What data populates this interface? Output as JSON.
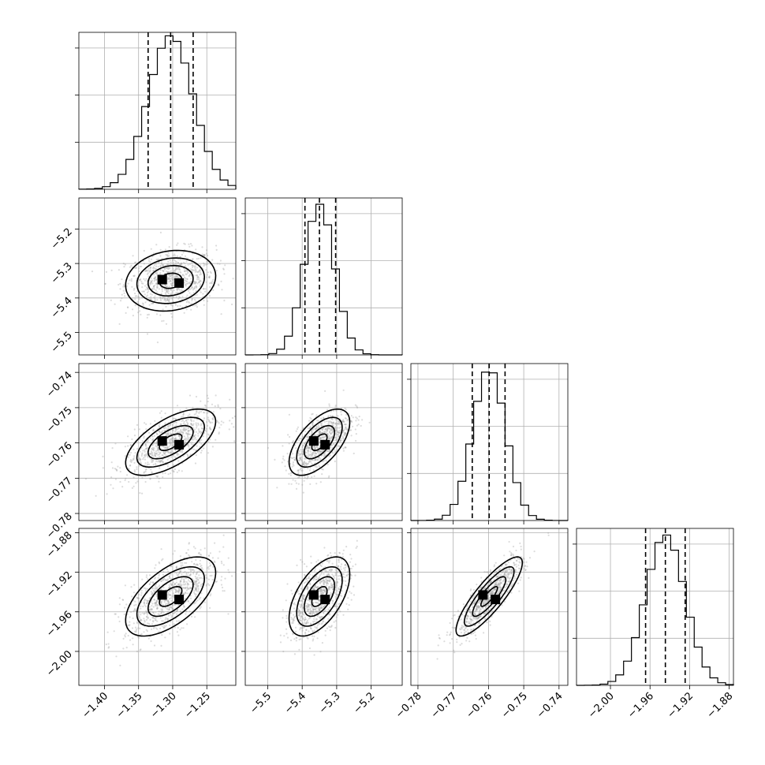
{
  "chart_data": {
    "type": "corner",
    "title": "",
    "n_params": 4,
    "grid": true,
    "params": [
      {
        "index": 0,
        "range": [
          -1.4375,
          -1.2075
        ],
        "median": -1.303,
        "q16": -1.336,
        "q84": -1.27,
        "sigma": 0.033,
        "hist_peak": 0.98,
        "x_ticks": [
          -1.4,
          -1.35,
          -1.3,
          -1.25
        ],
        "x_tick_labels": [
          "−1.40",
          "−1.35",
          "−1.30",
          "−1.25"
        ],
        "y_ticks": [],
        "y_tick_labels": []
      },
      {
        "index": 1,
        "range": [
          -5.565,
          -5.11
        ],
        "median": -5.35,
        "q16": -5.392,
        "q84": -5.303,
        "sigma": 0.044,
        "hist_peak": 0.96,
        "x_ticks": [
          -5.5,
          -5.4,
          -5.3,
          -5.2
        ],
        "x_tick_labels": [
          "−5.5",
          "−5.4",
          "−5.3",
          "−5.2"
        ],
        "y_ticks": [
          -5.2,
          -5.3,
          -5.4,
          -5.5
        ],
        "y_tick_labels": [
          "−5.2",
          "−5.3",
          "−5.4",
          "−5.5"
        ]
      },
      {
        "index": 2,
        "range": [
          -0.782,
          -0.7375
        ],
        "median": -0.7598,
        "q16": -0.7646,
        "q84": -0.7553,
        "sigma": 0.0047,
        "hist_peak": 0.97,
        "x_ticks": [
          -0.78,
          -0.77,
          -0.76,
          -0.75,
          -0.74
        ],
        "x_tick_labels": [
          "−0.78",
          "−0.77",
          "−0.76",
          "−0.75",
          "−0.74"
        ],
        "y_ticks": [
          -0.74,
          -0.75,
          -0.76,
          -0.77,
          -0.78
        ],
        "y_tick_labels": [
          "−0.74",
          "−0.75",
          "−0.76",
          "−0.77",
          "−0.78"
        ]
      },
      {
        "index": 3,
        "range": [
          -2.0343,
          -1.8757
        ],
        "median": -1.9445,
        "q16": -1.9645,
        "q84": -1.9245,
        "sigma": 0.02,
        "hist_peak": 0.96,
        "x_ticks": [
          -2.0,
          -1.96,
          -1.92,
          -1.88
        ],
        "x_tick_labels": [
          "−2.00",
          "−1.96",
          "−1.92",
          "−1.88"
        ],
        "y_ticks": [
          -1.88,
          -1.92,
          -1.96,
          -2.0
        ],
        "y_tick_labels": [
          "−1.88",
          "−1.92",
          "−1.96",
          "−2.00"
        ]
      }
    ],
    "correlations": [
      {
        "pair": [
          0,
          1
        ],
        "rho": 0.15
      },
      {
        "pair": [
          0,
          2
        ],
        "rho": 0.62
      },
      {
        "pair": [
          1,
          2
        ],
        "rho": 0.6
      },
      {
        "pair": [
          0,
          3
        ],
        "rho": 0.6
      },
      {
        "pair": [
          1,
          3
        ],
        "rho": 0.55
      },
      {
        "pair": [
          2,
          3
        ],
        "rho": 0.85
      }
    ],
    "contour_levels_sigma": [
      0.5,
      1.0,
      1.5,
      2.0
    ],
    "quantiles": [
      0.16,
      0.5,
      0.84
    ]
  }
}
